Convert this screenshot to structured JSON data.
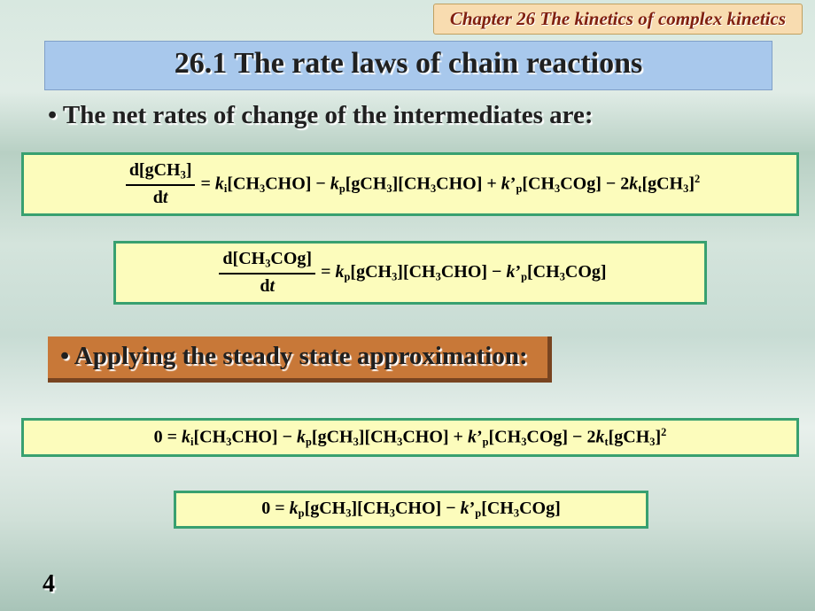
{
  "banner": {
    "chapter": "Chapter 26 The kinetics of complex kinetics"
  },
  "title": "26.1 The rate laws of chain reactions",
  "subhead_intermediates": "• The net rates of change of the intermediates are:",
  "subhead_steadystate": "• Applying the steady state approximation:",
  "page_number": "4",
  "equations": {
    "eq1": {
      "frac_num": "d[gCH₃]",
      "frac_den": "dt",
      "rhs": " = kᵢ[CH₃CHO] − kₚ[gCH₃][CH₃CHO] + k’ₚ[CH₃COg] − 2kₜ[gCH₃]²"
    },
    "eq2": {
      "frac_num": "d[CH₃COg]",
      "frac_den": "dt",
      "rhs": " = kₚ[gCH₃][CH₃CHO] − k’ₚ[CH₃COg]"
    },
    "eq3": {
      "line": "0 = kᵢ[CH₃CHO] − kₚ[gCH₃][CH₃CHO] + k’ₚ[CH₃COg] − 2kₜ[gCH₃]²"
    },
    "eq4": {
      "line": "0 = kₚ[gCH₃][CH₃CHO] − k’ₚ[CH₃COg]"
    }
  },
  "style": {
    "slide_size": [
      920,
      690
    ],
    "bg_gradient": [
      "#d8e8e0",
      "#e0ece6",
      "#b8d0c4",
      "#d4e4dc",
      "#c8dcd4",
      "#e8f0ec",
      "#d0e0d8",
      "#a8c4b8"
    ],
    "chapter_banner": {
      "bg": "#f8dcb0",
      "border": "#c0a060",
      "text": "#802010",
      "fontsize": 21,
      "italic": true,
      "bold": true
    },
    "title_banner": {
      "bg": "#a8c8ec",
      "border": "#80a0c8",
      "text": "#202020",
      "fontsize": 34,
      "bold": true,
      "shadow": "#ffffff"
    },
    "subhead": {
      "text": "#202020",
      "fontsize": 29,
      "bold": true,
      "shadow": "#ffffff"
    },
    "subhead2_box": {
      "bg": "#c87838",
      "shadow": "#784420"
    },
    "equation_box": {
      "bg": "#fcfcbc",
      "border": "#38a070",
      "border_width": 3,
      "fontsize": 20,
      "bold": true
    },
    "page_num": {
      "text": "#000000",
      "fontsize": 28,
      "bold": true,
      "shadow": "#ffffff"
    }
  }
}
